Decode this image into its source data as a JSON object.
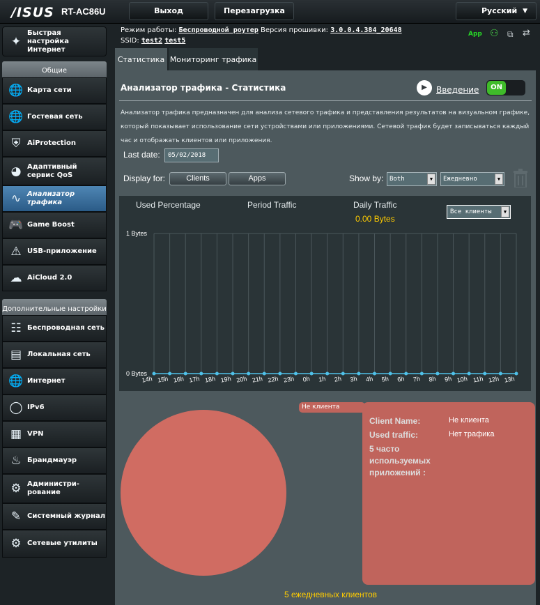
{
  "header": {
    "logo": "/ISUS",
    "model": "RT-AC86U",
    "logout": "Выход",
    "reboot": "Перезагрузка",
    "language": "Русский",
    "lang_caret": "▼"
  },
  "status": {
    "mode_label": "Режим работы:",
    "mode_value": "Беспроводной роутер",
    "fw_label": "Версия прошивки:",
    "fw_value": "3.0.0.4.384_20648",
    "ssid_label": "SSID:",
    "ssid1": "test2",
    "ssid2": "test5",
    "app_label": "App"
  },
  "sidebar": {
    "quick": "Быстрая настройка Интернет",
    "general_header": "Общие",
    "items": [
      {
        "label": "Карта сети",
        "icon": "network-map-icon"
      },
      {
        "label": "Гостевая сеть",
        "icon": "guest-network-icon"
      },
      {
        "label": "AiProtection",
        "icon": "shield-icon"
      },
      {
        "label": "Адаптивный сервис QoS",
        "icon": "qos-gauge-icon"
      },
      {
        "label": "Анализатор трафика",
        "icon": "traffic-analyzer-icon"
      },
      {
        "label": "Game Boost",
        "icon": "gamepad-icon"
      },
      {
        "label": "USB-приложение",
        "icon": "usb-icon"
      },
      {
        "label": "AiCloud 2.0",
        "icon": "cloud-icon"
      }
    ],
    "advanced_header": "Дополнительные настройки",
    "advanced": [
      {
        "label": "Беспроводная сеть",
        "icon": "wireless-icon"
      },
      {
        "label": "Локальная сеть",
        "icon": "lan-icon"
      },
      {
        "label": "Интернет",
        "icon": "globe-icon"
      },
      {
        "label": "IPv6",
        "icon": "ipv6-icon"
      },
      {
        "label": "VPN",
        "icon": "vpn-icon"
      },
      {
        "label": "Брандмауэр",
        "icon": "firewall-icon"
      },
      {
        "label": "Администри-рование",
        "icon": "admin-icon"
      },
      {
        "label": "Системный журнал",
        "icon": "log-icon"
      },
      {
        "label": "Сетевые утилиты",
        "icon": "tools-icon"
      }
    ]
  },
  "tabs": [
    "Статистика",
    "Мониторинг трафика"
  ],
  "main": {
    "title": "Анализатор трафика - Статистика",
    "intro": "Введение",
    "toggle": "ON",
    "description": "Анализатор трафика предназначен для анализа сетевого трафика и представления результатов на визуальном графике, который показывает использование сети устройствами или приложениями. Сетевой трафик будет записываться каждый час и отображать клиентов или приложения.",
    "last_date_label": "Last date:",
    "last_date": "05/02/2018",
    "display_for": "Display for:",
    "clients_btn": "Clients",
    "apps_btn": "Apps",
    "show_by": "Show by:",
    "show_by_value": "Both",
    "period_value": "Ежедневно"
  },
  "chart_head": {
    "used_pct": "Used Percentage",
    "period": "Period Traffic",
    "daily": "Daily Traffic",
    "daily_value": "0.00 Bytes",
    "client_select": "Все клиенты"
  },
  "chart_data": {
    "type": "line",
    "x": [
      "14h",
      "15h",
      "16h",
      "17h",
      "18h",
      "19h",
      "20h",
      "21h",
      "22h",
      "23h",
      "0h",
      "1h",
      "2h",
      "3h",
      "4h",
      "5h",
      "6h",
      "7h",
      "8h",
      "9h",
      "10h",
      "11h",
      "12h",
      "13h"
    ],
    "values": [
      0,
      0,
      0,
      0,
      0,
      0,
      0,
      0,
      0,
      0,
      0,
      0,
      0,
      0,
      0,
      0,
      0,
      0,
      0,
      0,
      0,
      0,
      0,
      0
    ],
    "y_ticks": [
      "1 Bytes",
      "0 Bytes"
    ],
    "ylim": [
      0,
      1
    ],
    "grid": true,
    "line_color": "#4fc1e9"
  },
  "pie_data": {
    "type": "pie",
    "labels": [
      "Не клиента"
    ],
    "values": [
      100
    ],
    "color": "#d06c62"
  },
  "details": {
    "client_name_label": "Client Name:",
    "client_name": "Не клиента",
    "used_traffic_label": "Used traffic:",
    "used_traffic": "Нет трафика",
    "top_apps_label": "5 часто используемых приложений :"
  },
  "footer": {
    "daily_clients": "5 ежедневных клиентов"
  }
}
